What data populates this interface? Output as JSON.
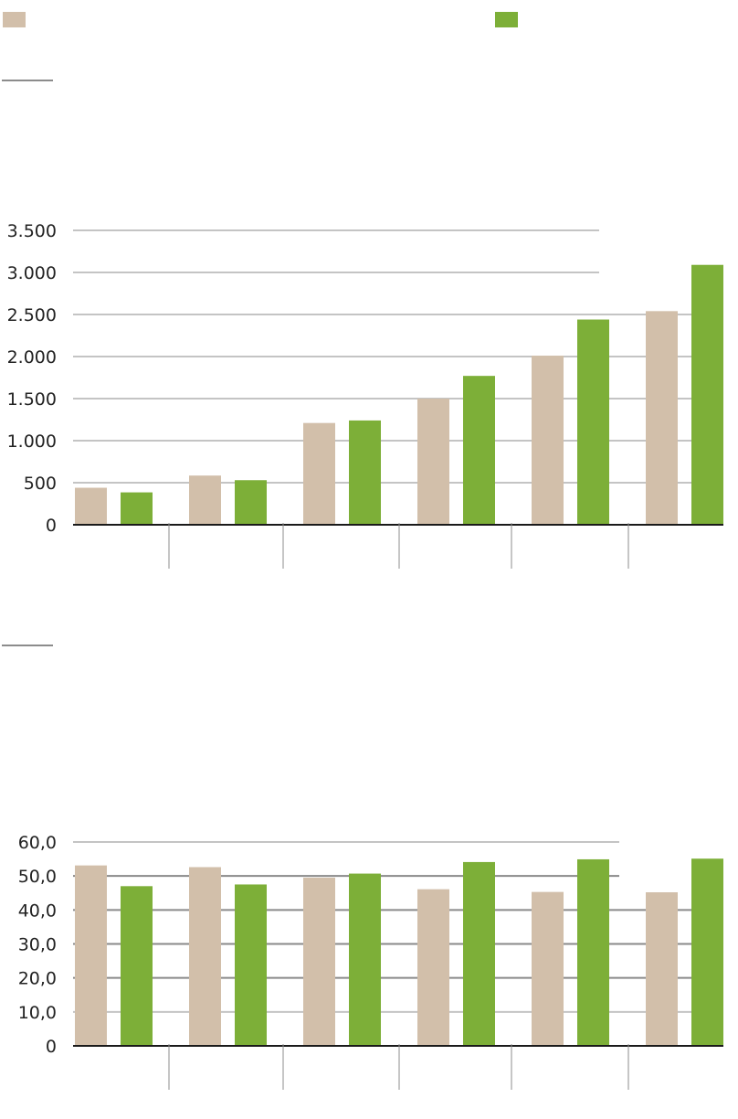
{
  "colors": {
    "series1": "#d2bfaa",
    "series2": "#7daf38",
    "grid": "#c4c4c4",
    "grid_dark": "#8a8a8a",
    "axis": "#1a1a1a",
    "tick": "#8c8c8c"
  },
  "legend": [
    {
      "color": "#d2bfaa"
    },
    {
      "color": "#7daf38"
    }
  ],
  "chart_data": [
    {
      "type": "bar",
      "title": "",
      "xlabel": "",
      "ylabel": "",
      "categories": [
        "",
        "",
        "",
        "",
        "",
        ""
      ],
      "ylim": [
        0,
        3500
      ],
      "yticks": [
        0,
        500,
        1000,
        1500,
        2000,
        2500,
        3000,
        3500
      ],
      "ytick_labels": [
        "0",
        "500",
        "1.000",
        "1.500",
        "2.000",
        "2.500",
        "3.000",
        "3.500"
      ],
      "grid": true,
      "series": [
        {
          "name": "",
          "color": "#d2bfaa",
          "values": [
            440,
            585,
            1210,
            1500,
            2010,
            2540
          ]
        },
        {
          "name": "",
          "color": "#7daf38",
          "values": [
            385,
            530,
            1240,
            1770,
            2440,
            3090
          ]
        }
      ]
    },
    {
      "type": "bar",
      "title": "",
      "xlabel": "",
      "ylabel": "",
      "categories": [
        "",
        "",
        "",
        "",
        "",
        ""
      ],
      "ylim": [
        0,
        60
      ],
      "yticks": [
        0,
        10,
        20,
        30,
        40,
        50,
        60
      ],
      "ytick_labels": [
        "0",
        "10,0",
        "20,0",
        "30,0",
        "40,0",
        "50,0",
        "60,0"
      ],
      "grid": true,
      "series": [
        {
          "name": "",
          "color": "#d2bfaa",
          "values": [
            53.1,
            52.6,
            49.5,
            46.1,
            45.3,
            45.2
          ]
        },
        {
          "name": "",
          "color": "#7daf38",
          "values": [
            47.0,
            47.5,
            50.7,
            54.1,
            54.9,
            55.1
          ]
        }
      ]
    }
  ]
}
